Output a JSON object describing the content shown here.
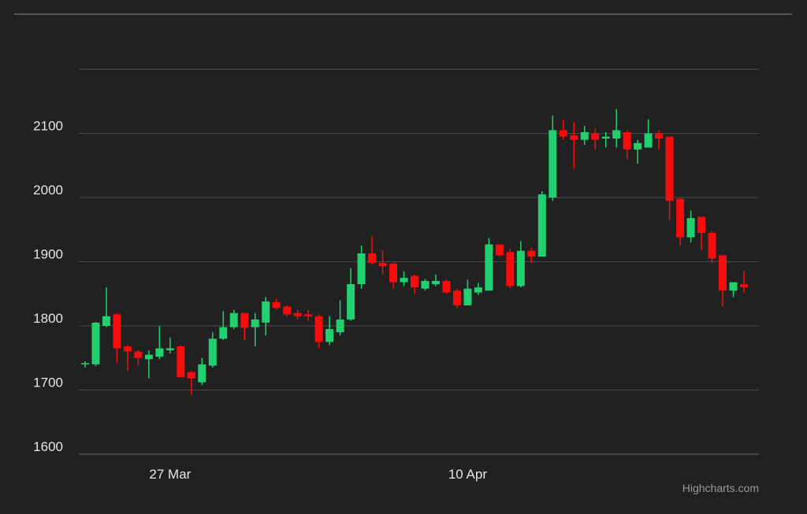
{
  "chart_data": {
    "type": "candlestick",
    "credits": "Highcharts.com",
    "categories": [
      null,
      null,
      null,
      null,
      null,
      null,
      null,
      null,
      "27 Mar",
      null,
      null,
      null,
      null,
      null,
      null,
      null,
      null,
      null,
      null,
      null,
      null,
      null,
      null,
      null,
      null,
      null,
      null,
      null,
      null,
      null,
      null,
      null,
      null,
      null,
      null,
      null,
      "10 Apr",
      null,
      null,
      null,
      null,
      null,
      null,
      null,
      null,
      null,
      null,
      null,
      null,
      null,
      null,
      null,
      null,
      null,
      null,
      null,
      null,
      null,
      null,
      null,
      null,
      null,
      null
    ],
    "open": [
      1740,
      1740,
      1800,
      1818,
      1768,
      1760,
      1748,
      1752,
      1762,
      1768,
      1728,
      1712,
      1738,
      1780,
      1798,
      1820,
      1798,
      1805,
      1837,
      1830,
      1820,
      1818,
      1815,
      1775,
      1790,
      1810,
      1865,
      1913,
      1898,
      1897,
      1868,
      1878,
      1858,
      1865,
      1870,
      1855,
      1832,
      1852,
      1855,
      1927,
      1915,
      1862,
      1917,
      1908,
      2000,
      2105,
      2097,
      2090,
      2100,
      2092,
      2092,
      2102,
      2075,
      2078,
      2100,
      2095,
      1998,
      1938,
      1970,
      1945,
      1910,
      1855,
      1865
    ],
    "high": [
      1745,
      1806,
      1860,
      1820,
      1770,
      1762,
      1762,
      1800,
      1782,
      1770,
      1730,
      1750,
      1790,
      1823,
      1825,
      1820,
      1820,
      1845,
      1842,
      1832,
      1825,
      1825,
      1818,
      1815,
      1840,
      1890,
      1925,
      1940,
      1918,
      1898,
      1885,
      1880,
      1873,
      1880,
      1872,
      1858,
      1872,
      1867,
      1937,
      1927,
      1920,
      1932,
      1922,
      2010,
      2128,
      2122,
      2118,
      2112,
      2108,
      2102,
      2138,
      2105,
      2090,
      2122,
      2105,
      2095,
      2000,
      1980,
      1970,
      1948,
      1910,
      1868,
      1885
    ],
    "low": [
      1735,
      1737,
      1798,
      1742,
      1730,
      1738,
      1718,
      1748,
      1757,
      1720,
      1692,
      1708,
      1735,
      1778,
      1795,
      1778,
      1768,
      1785,
      1825,
      1815,
      1810,
      1808,
      1765,
      1770,
      1785,
      1808,
      1858,
      1895,
      1880,
      1858,
      1862,
      1850,
      1855,
      1862,
      1850,
      1828,
      1832,
      1848,
      1855,
      1908,
      1858,
      1860,
      1898,
      1908,
      1995,
      2090,
      2045,
      2082,
      2075,
      2078,
      2078,
      2060,
      2053,
      2078,
      2075,
      1965,
      1925,
      1930,
      1918,
      1898,
      1830,
      1845,
      1852
    ],
    "close": [
      1742,
      1805,
      1815,
      1765,
      1760,
      1750,
      1755,
      1765,
      1765,
      1720,
      1718,
      1740,
      1780,
      1798,
      1820,
      1797,
      1810,
      1838,
      1828,
      1818,
      1815,
      1815,
      1775,
      1795,
      1810,
      1865,
      1913,
      1898,
      1893,
      1868,
      1875,
      1860,
      1870,
      1870,
      1852,
      1832,
      1858,
      1860,
      1927,
      1910,
      1862,
      1917,
      1908,
      2005,
      2105,
      2095,
      2090,
      2102,
      2090,
      2095,
      2105,
      2075,
      2085,
      2100,
      2092,
      1995,
      1938,
      1968,
      1945,
      1905,
      1855,
      1868,
      1860
    ],
    "up_color": "#22d06f",
    "down_color": "#f50d0d",
    "ylim": [
      1600,
      2200
    ],
    "yticks": [
      1600,
      1700,
      1800,
      1900,
      2000,
      2100
    ],
    "grid": true
  }
}
